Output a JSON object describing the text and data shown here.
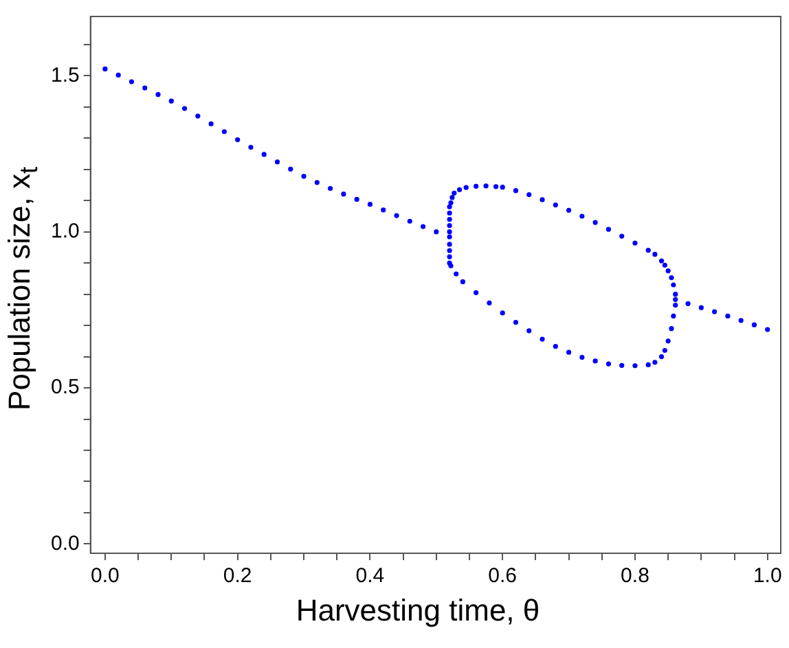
{
  "chart_data": {
    "type": "scatter",
    "xlabel": "Harvesting time, θ",
    "ylabel": "Population size, x$_{t}$",
    "xlim": [
      -0.022,
      1.02
    ],
    "ylim": [
      -0.03,
      1.69
    ],
    "xticks": [
      {
        "value": 0,
        "label": "0.0"
      },
      {
        "value": 0.05,
        "label": null
      },
      {
        "value": 0.1,
        "label": null
      },
      {
        "value": 0.15,
        "label": null
      },
      {
        "value": 0.2,
        "label": "0.2"
      },
      {
        "value": 0.25,
        "label": null
      },
      {
        "value": 0.3,
        "label": null
      },
      {
        "value": 0.35,
        "label": null
      },
      {
        "value": 0.4,
        "label": "0.4"
      },
      {
        "value": 0.45,
        "label": null
      },
      {
        "value": 0.5,
        "label": null
      },
      {
        "value": 0.55,
        "label": null
      },
      {
        "value": 0.6,
        "label": "0.6"
      },
      {
        "value": 0.65,
        "label": null
      },
      {
        "value": 0.7,
        "label": null
      },
      {
        "value": 0.75,
        "label": null
      },
      {
        "value": 0.8,
        "label": "0.8"
      },
      {
        "value": 0.85,
        "label": null
      },
      {
        "value": 0.9,
        "label": null
      },
      {
        "value": 0.95,
        "label": null
      },
      {
        "value": 1,
        "label": "1.0"
      }
    ],
    "yticks": [
      {
        "value": 0,
        "label": "0.0"
      },
      {
        "value": 0.1,
        "label": null
      },
      {
        "value": 0.2,
        "label": null
      },
      {
        "value": 0.3,
        "label": null
      },
      {
        "value": 0.4,
        "label": null
      },
      {
        "value": 0.5,
        "label": "0.5"
      },
      {
        "value": 0.6,
        "label": null
      },
      {
        "value": 0.7,
        "label": null
      },
      {
        "value": 0.8,
        "label": null
      },
      {
        "value": 0.9,
        "label": null
      },
      {
        "value": 1,
        "label": "1.0"
      },
      {
        "value": 1.1,
        "label": null
      },
      {
        "value": 1.2,
        "label": null
      },
      {
        "value": 1.3,
        "label": null
      },
      {
        "value": 1.4,
        "label": null
      },
      {
        "value": 1.5,
        "label": "1.5"
      },
      {
        "value": 1.6,
        "label": null
      }
    ],
    "grid": false,
    "legend": false,
    "marker": "circle",
    "series": [
      {
        "color": "#0000ff",
        "x": [
          0,
          0.02,
          0.04,
          0.06,
          0.08,
          0.1,
          0.12,
          0.14,
          0.16,
          0.18,
          0.2,
          0.22,
          0.24,
          0.26,
          0.28,
          0.3,
          0.32,
          0.34,
          0.36,
          0.38,
          0.4,
          0.42,
          0.44,
          0.46,
          0.48,
          0.5,
          0.52,
          0.52,
          0.52,
          0.52,
          0.52,
          0.52,
          0.52,
          0.52,
          0.52,
          0.52,
          0.522,
          0.524,
          0.527,
          0.535,
          0.545,
          0.56,
          0.575,
          0.59,
          0.6,
          0.62,
          0.64,
          0.66,
          0.68,
          0.7,
          0.72,
          0.74,
          0.76,
          0.78,
          0.8,
          0.82,
          0.83,
          0.84,
          0.845,
          0.85,
          0.855,
          0.858,
          0.861,
          0.522,
          0.53,
          0.54,
          0.56,
          0.58,
          0.6,
          0.62,
          0.64,
          0.66,
          0.68,
          0.7,
          0.72,
          0.74,
          0.76,
          0.78,
          0.8,
          0.82,
          0.83,
          0.84,
          0.845,
          0.85,
          0.855,
          0.858,
          0.861,
          0.861,
          0.88,
          0.9,
          0.92,
          0.94,
          0.96,
          0.98,
          1
        ],
        "values": [
          1.522,
          1.502,
          1.481,
          1.461,
          1.44,
          1.419,
          1.395,
          1.371,
          1.346,
          1.321,
          1.295,
          1.271,
          1.248,
          1.224,
          1.201,
          1.178,
          1.158,
          1.139,
          1.121,
          1.104,
          1.088,
          1.07,
          1.052,
          1.034,
          1.017,
          1,
          0.984,
          0.9,
          0.92,
          0.94,
          0.96,
          1,
          1.02,
          1.04,
          1.06,
          1.08,
          1.093,
          1.11,
          1.124,
          1.135,
          1.142,
          1.146,
          1.147,
          1.145,
          1.143,
          1.132,
          1.119,
          1.103,
          1.086,
          1.069,
          1.05,
          1.03,
          1.008,
          0.986,
          0.964,
          0.941,
          0.928,
          0.907,
          0.893,
          0.875,
          0.853,
          0.83,
          0.8,
          0.891,
          0.865,
          0.84,
          0.805,
          0.772,
          0.74,
          0.71,
          0.683,
          0.656,
          0.633,
          0.614,
          0.598,
          0.586,
          0.577,
          0.572,
          0.571,
          0.574,
          0.582,
          0.6,
          0.62,
          0.65,
          0.69,
          0.73,
          0.765,
          0.783,
          0.77,
          0.757,
          0.744,
          0.73,
          0.716,
          0.702,
          0.687
        ]
      }
    ]
  }
}
